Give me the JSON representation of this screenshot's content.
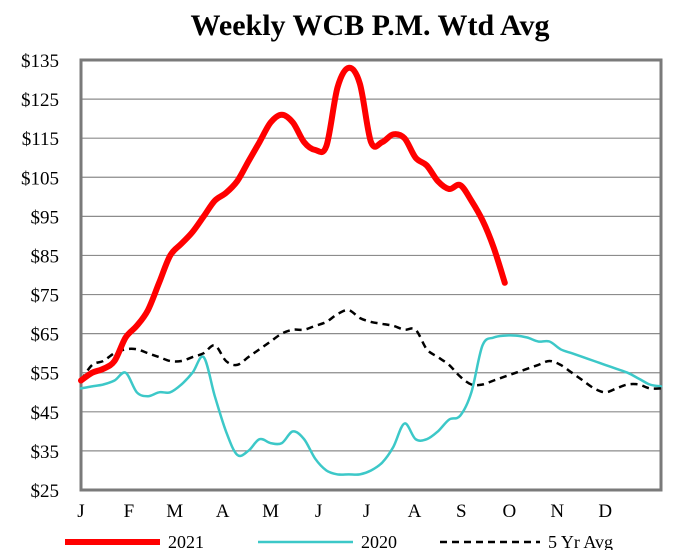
{
  "chart_data": {
    "type": "line",
    "title": "Weekly WCB P.M. Wtd Avg",
    "xlabel": "",
    "ylabel": "",
    "x_tick_labels": [
      "J",
      "F",
      "M",
      "A",
      "M",
      "J",
      "J",
      "A",
      "S",
      "O",
      "N",
      "D"
    ],
    "y_tick_labels": [
      "$25",
      "$35",
      "$45",
      "$55",
      "$65",
      "$75",
      "$85",
      "$95",
      "$105",
      "$115",
      "$125",
      "$135"
    ],
    "ylim": [
      25,
      135
    ],
    "y_tick_step": 10,
    "x_range_weeks": [
      1,
      53
    ],
    "x_tick_weeks": [
      1,
      5.3,
      9.4,
      13.7,
      18,
      22.3,
      26.6,
      30.9,
      35.1,
      39.4,
      43.7,
      48
    ],
    "grid": true,
    "legend_position": "bottom",
    "series": [
      {
        "name": "2021",
        "color": "#ff0000",
        "style": "solid-thick",
        "x": [
          1,
          2,
          3,
          4,
          5,
          6,
          7,
          8,
          9,
          10,
          11,
          12,
          13,
          14,
          15,
          16,
          17,
          18,
          19,
          20,
          21,
          22,
          23,
          24,
          25,
          26,
          27,
          28,
          29,
          30,
          31,
          32,
          33,
          34,
          35,
          36,
          37,
          38,
          39
        ],
        "values": [
          53,
          55,
          56,
          58,
          64,
          67,
          71,
          78,
          85,
          88,
          91,
          95,
          99,
          101,
          104,
          109,
          114,
          119,
          121,
          119,
          114,
          112,
          113,
          128,
          133,
          129,
          114,
          114,
          116,
          115,
          110,
          108,
          104,
          102,
          103,
          99,
          94,
          87,
          78
        ]
      },
      {
        "name": "2020",
        "color": "#3cc8c8",
        "style": "solid",
        "x": [
          1,
          2,
          3,
          4,
          5,
          6,
          7,
          8,
          9,
          10,
          11,
          12,
          13,
          14,
          15,
          16,
          17,
          18,
          19,
          20,
          21,
          22,
          23,
          24,
          25,
          26,
          27,
          28,
          29,
          30,
          31,
          32,
          33,
          34,
          35,
          36,
          37,
          38,
          39,
          40,
          41,
          42,
          43,
          44,
          45,
          46,
          47,
          48,
          49,
          50,
          51,
          52,
          53
        ],
        "values": [
          51,
          51.5,
          52,
          53,
          55,
          50,
          49,
          50,
          50,
          52,
          55,
          59,
          49,
          40,
          34,
          35,
          38,
          37,
          37,
          40,
          38,
          33,
          30,
          29,
          29,
          29,
          30,
          32,
          36,
          42,
          38,
          38,
          40,
          43,
          44,
          50,
          62,
          64,
          64.5,
          64.5,
          64,
          63,
          63,
          61,
          60,
          59,
          58,
          57,
          56,
          55,
          53.5,
          52,
          51.5
        ]
      },
      {
        "name": "5 Yr Avg",
        "color": "#000000",
        "style": "dashed",
        "x": [
          1,
          2,
          3,
          4,
          5,
          6,
          7,
          8,
          9,
          10,
          11,
          12,
          13,
          14,
          15,
          16,
          17,
          18,
          19,
          20,
          21,
          22,
          23,
          24,
          25,
          26,
          27,
          28,
          29,
          30,
          31,
          32,
          33,
          34,
          35,
          36,
          37,
          38,
          39,
          40,
          41,
          42,
          43,
          44,
          45,
          46,
          47,
          48,
          49,
          50,
          51,
          52,
          53
        ],
        "values": [
          53,
          57,
          58,
          60,
          61,
          61,
          60,
          59,
          58,
          58,
          59,
          60,
          62,
          58,
          57,
          59,
          61,
          63,
          65,
          66,
          66,
          67,
          68,
          70,
          71,
          69,
          68,
          67.5,
          67,
          66,
          66,
          61,
          59,
          57,
          54,
          52,
          52,
          53,
          54,
          55,
          56,
          57,
          58,
          57,
          55,
          53,
          51,
          50,
          51,
          52,
          52,
          51,
          51
        ]
      }
    ]
  }
}
